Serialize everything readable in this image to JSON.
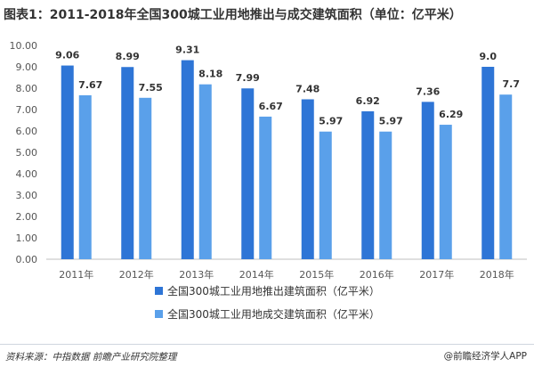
{
  "title": "图表1：2011-2018年全国300城工业用地推出与成交建筑面积（单位：亿平米）",
  "footer": {
    "source": "资料来源：中指数据 前瞻产业研究院整理",
    "brand": "@前瞻经济学人APP"
  },
  "colors": {
    "series1": "#2e75d6",
    "series2": "#5aa0ea"
  },
  "chart_data": {
    "type": "bar",
    "title": "图表1：2011-2018年全国300城工业用地推出与成交建筑面积（单位：亿平米）",
    "categories": [
      "2011年",
      "2012年",
      "2013年",
      "2014年",
      "2015年",
      "2016年",
      "2017年",
      "2018年"
    ],
    "series": [
      {
        "name": "全国300城工业用地推出建筑面积（亿平米）",
        "values": [
          9.06,
          8.99,
          9.31,
          7.99,
          7.48,
          6.92,
          7.36,
          9.0
        ],
        "labels": [
          "9.06",
          "8.99",
          "9.31",
          "7.99",
          "7.48",
          "6.92",
          "7.36",
          "9.0"
        ]
      },
      {
        "name": "全国300城工业用地成交建筑面积（亿平米）",
        "values": [
          7.67,
          7.55,
          8.18,
          6.67,
          5.97,
          5.97,
          6.29,
          7.7
        ],
        "labels": [
          "7.67",
          "7.55",
          "8.18",
          "6.67",
          "5.97",
          "5.97",
          "6.29",
          "7.7"
        ]
      }
    ],
    "ylim": [
      0,
      10
    ],
    "yticks": [
      "0.00",
      "1.00",
      "2.00",
      "3.00",
      "4.00",
      "5.00",
      "6.00",
      "7.00",
      "8.00",
      "9.00",
      "10.00"
    ],
    "legend_position": "bottom",
    "grid": false
  }
}
